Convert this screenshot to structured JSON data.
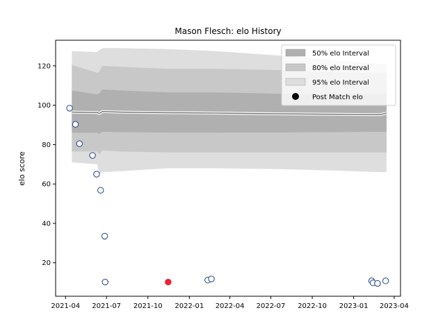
{
  "chart_data": {
    "type": "scatter",
    "title": "Mason Flesch: elo History",
    "xlabel": "",
    "ylabel": "elo score",
    "xlim": [
      "2021-03-10",
      "2023-04-15"
    ],
    "ylim": [
      3,
      133
    ],
    "x_ticks": [
      "2021-04",
      "2021-07",
      "2021-10",
      "2022-01",
      "2022-04",
      "2022-07",
      "2022-10",
      "2023-01",
      "2023-04"
    ],
    "x_tick_labels": [
      "2021-04",
      "2021-07",
      "2021-10",
      "2022-01",
      "2022-04",
      "2022-07",
      "2022-10",
      "2023-01",
      "2023-04"
    ],
    "y_ticks": [
      20,
      40,
      60,
      80,
      100,
      120
    ],
    "y_tick_labels": [
      "20",
      "40",
      "60",
      "80",
      "100",
      "120"
    ],
    "grid": false,
    "legend_position": "top-right",
    "legend": [
      {
        "label": "50% elo Interval",
        "kind": "band",
        "color": "#b0b0b0"
      },
      {
        "label": "80% elo Interval",
        "kind": "band",
        "color": "#c8c8c8"
      },
      {
        "label": "95% elo Interval",
        "kind": "band",
        "color": "#dedede"
      },
      {
        "label": "Post Match elo",
        "kind": "marker",
        "color": "#000000"
      }
    ],
    "interval_x": [
      "2021-04-15",
      "2021-06-10",
      "2021-06-15",
      "2021-06-22",
      "2021-08-01",
      "2021-11-15",
      "2022-03-01",
      "2022-08-01",
      "2023-01-01",
      "2023-03-01",
      "2023-03-15"
    ],
    "mean": [
      96.5,
      96.3,
      95.8,
      96.8,
      96.5,
      96.2,
      96.0,
      95.6,
      95.3,
      95.2,
      96.0
    ],
    "band_50": {
      "lower": [
        86,
        86,
        85.5,
        86.5,
        86.3,
        86.1,
        86.1,
        86.2,
        86.4,
        86.5,
        86.5
      ],
      "upper": [
        107.5,
        105.5,
        106,
        108,
        107.5,
        106.5,
        106.5,
        105.8,
        105.5,
        105.5,
        106
      ]
    },
    "band_80": {
      "lower": [
        76.5,
        76.5,
        75,
        77,
        76.5,
        76,
        76,
        76,
        76,
        76,
        76
      ],
      "upper": [
        120.5,
        116.5,
        117,
        120,
        119.5,
        118.5,
        118.5,
        117.8,
        116.5,
        116.5,
        116.5
      ]
    },
    "band_95": {
      "lower": [
        71,
        70,
        65,
        66,
        66.5,
        68,
        68,
        67.5,
        66.5,
        66,
        66
      ],
      "upper": [
        127.5,
        127,
        128,
        129,
        129,
        128.5,
        127.5,
        125,
        122,
        121,
        121
      ]
    },
    "points": [
      {
        "date": "2021-04-10",
        "elo": 98.5,
        "color": "#ffffff"
      },
      {
        "date": "2021-04-23",
        "elo": 90.3,
        "color": "#ffffff"
      },
      {
        "date": "2021-05-02",
        "elo": 80.5,
        "color": "#ffffff"
      },
      {
        "date": "2021-05-31",
        "elo": 74.5,
        "color": "#ffffff"
      },
      {
        "date": "2021-06-09",
        "elo": 65.0,
        "color": "#ffffff"
      },
      {
        "date": "2021-06-18",
        "elo": 56.8,
        "color": "#ffffff"
      },
      {
        "date": "2021-06-27",
        "elo": 33.5,
        "color": "#ffffff"
      },
      {
        "date": "2021-06-28",
        "elo": 10.2,
        "color": "#ffffff"
      },
      {
        "date": "2021-11-15",
        "elo": 10.2,
        "color": "#ee2233"
      },
      {
        "date": "2022-02-11",
        "elo": 11.2,
        "color": "#ffffff"
      },
      {
        "date": "2022-02-19",
        "elo": 11.8,
        "color": "#ffffff"
      },
      {
        "date": "2023-02-10",
        "elo": 10.8,
        "color": "#ffffff"
      },
      {
        "date": "2023-02-13",
        "elo": 9.8,
        "color": "#ffffff"
      },
      {
        "date": "2023-02-23",
        "elo": 9.5,
        "color": "#ffffff"
      },
      {
        "date": "2023-03-13",
        "elo": 10.8,
        "color": "#ffffff"
      }
    ],
    "marker_edge_color": "#1f3f8a",
    "mean_line_color": "#777777",
    "mean_halo_color": "#ffffff"
  }
}
